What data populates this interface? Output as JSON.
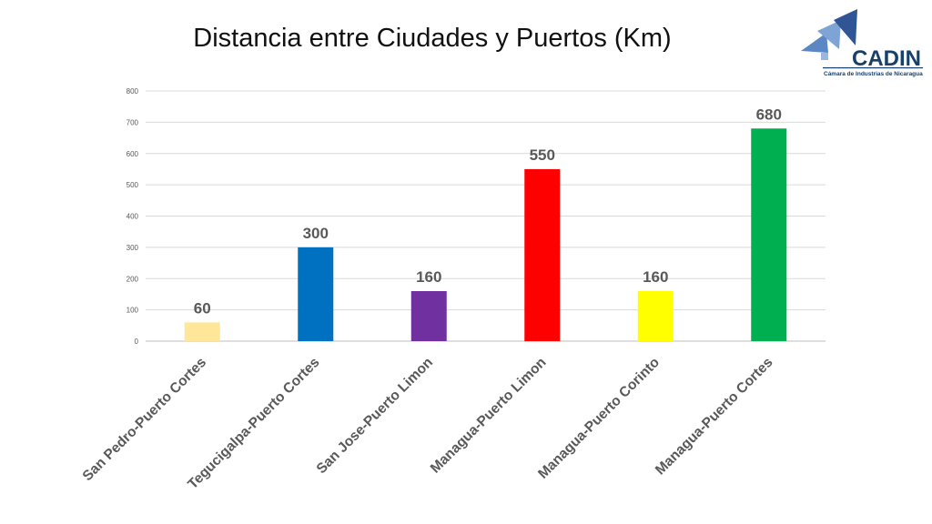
{
  "logo": {
    "name": "CADIN",
    "subtitle": "Cámara de Industrias de Nicaragua"
  },
  "chart_data": {
    "type": "bar",
    "title": "Distancia entre Ciudades y Puertos (Km)",
    "categories": [
      "San Pedro-Puerto Cortes",
      "Tegucigalpa-Puerto Cortes",
      "San Jose-Puerto Limon",
      "Managua-Puerto Limon",
      "Managua-Puerto Corinto",
      "Managua-Puerto Cortes"
    ],
    "values": [
      60,
      300,
      160,
      550,
      160,
      680
    ],
    "colors": [
      "#FFE699",
      "#0070C0",
      "#7030A0",
      "#FF0000",
      "#FFFF00",
      "#00B050"
    ],
    "xlabel": "",
    "ylabel": "",
    "ylim": [
      0,
      800
    ],
    "yticks": [
      0,
      100,
      200,
      300,
      400,
      500,
      600,
      700,
      800
    ],
    "grid": true,
    "legend": "none"
  }
}
